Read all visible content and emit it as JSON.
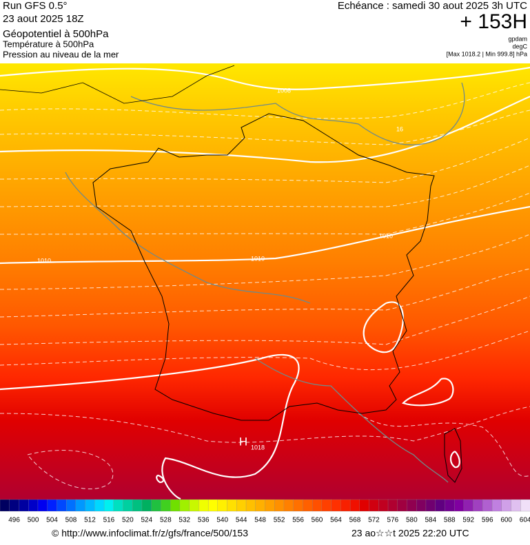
{
  "header": {
    "run": "Run GFS 0.5°",
    "date": "23 aout 2025 18Z",
    "line1": "Géopotentiel à 500hPa",
    "line2": "Température à 500hPa",
    "line3": "Pression au niveau de la mer",
    "echeance": "Echéance : samedi 30 aout 2025 3h UTC",
    "offset": "+ 153H",
    "unit1": "gpdam",
    "unit2": "degC",
    "unit3": "[Max 1018.2 | Min 999.8] hPa"
  },
  "map_labels": [
    "1008",
    "16",
    "1010",
    "1010",
    "1010",
    "H",
    "1018"
  ],
  "legend": {
    "ticks": [
      496,
      500,
      504,
      508,
      512,
      516,
      520,
      524,
      528,
      532,
      536,
      540,
      544,
      548,
      552,
      556,
      560,
      564,
      568,
      572,
      576,
      580,
      584,
      588,
      592,
      596,
      600,
      604
    ],
    "colors": [
      "#000060",
      "#000080",
      "#0000a0",
      "#0000c8",
      "#0000f0",
      "#0020ff",
      "#0048ff",
      "#0070ff",
      "#0098ff",
      "#00b8ff",
      "#00d8ff",
      "#00f0f0",
      "#00e0c0",
      "#00d0a0",
      "#00c080",
      "#00b060",
      "#20c040",
      "#40d020",
      "#70e000",
      "#a0f000",
      "#c8f800",
      "#f0ff00",
      "#ffff00",
      "#fff000",
      "#ffe000",
      "#ffd000",
      "#ffc000",
      "#ffb000",
      "#ffa000",
      "#ff9000",
      "#ff8000",
      "#ff7000",
      "#ff6000",
      "#ff5000",
      "#ff4000",
      "#ff3000",
      "#f82000",
      "#f01000",
      "#e00000",
      "#d00010",
      "#c00020",
      "#b00030",
      "#a00040",
      "#900050",
      "#800060",
      "#700070",
      "#600080",
      "#700090",
      "#8000a0",
      "#9020b0",
      "#a040c0",
      "#b060d0",
      "#c080e0",
      "#d0a0e8",
      "#e0c0f0",
      "#f0e0f8"
    ]
  },
  "footer": {
    "source": "© http://www.infoclimat.fr/z/gfs/france/500/153",
    "timestamp": "23 ao☆☆t 2025 22:20 UTC"
  }
}
